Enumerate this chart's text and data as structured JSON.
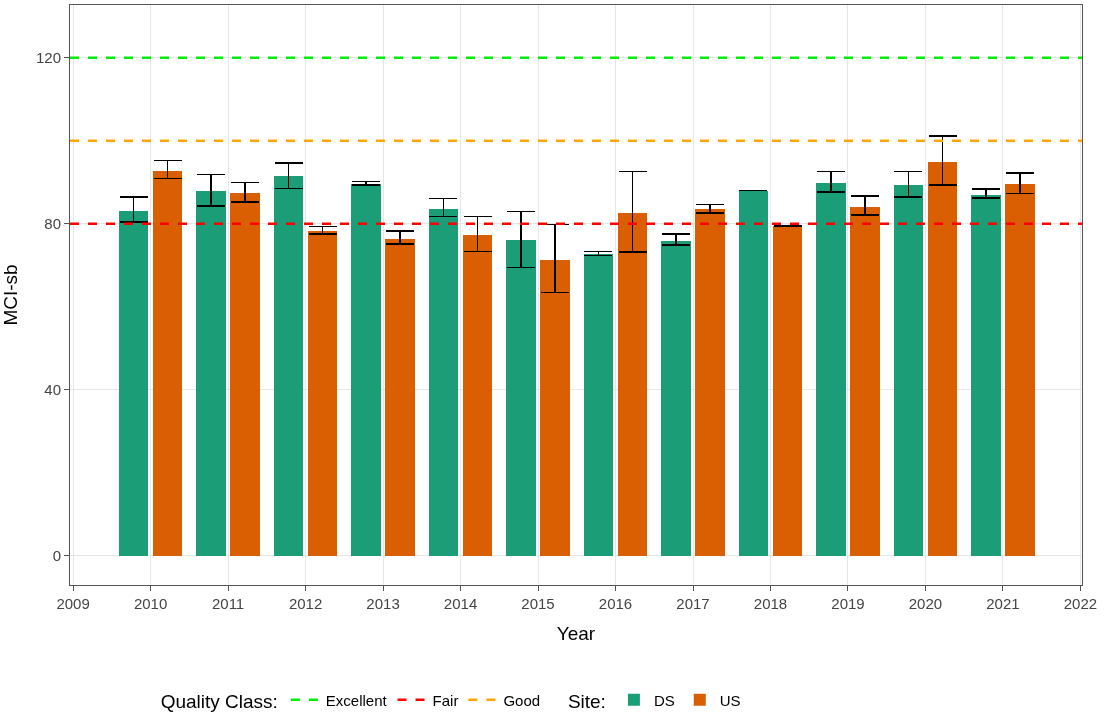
{
  "chart_data": {
    "type": "bar",
    "xlabel": "Year",
    "ylabel": "MCI-sb",
    "legend_title": [
      "Quality Class:",
      "Site:"
    ],
    "series": [
      {
        "name": "DS",
        "color": "#1b9e77",
        "x": [
          2009.78,
          2010.78,
          2011.78,
          2012.78,
          2013.78,
          2014.78,
          2015.78,
          2016.78,
          2017.78,
          2018.78,
          2019.78,
          2020.78
        ],
        "values": [
          83.2,
          87.8,
          91.5,
          89.5,
          83.6,
          76.1,
          72.7,
          75.9,
          88.0,
          89.8,
          89.3,
          86.9
        ],
        "errors": [
          [
            80.4,
            86.4
          ],
          [
            84.3,
            91.9
          ],
          [
            88.5,
            94.7
          ],
          [
            89.3,
            90.2
          ],
          [
            81.8,
            86.1
          ],
          [
            69.5,
            83.0
          ],
          [
            72.4,
            73.3
          ],
          [
            74.9,
            77.5
          ],
          null,
          [
            87.6,
            92.6
          ],
          [
            86.4,
            92.6
          ],
          [
            86.2,
            88.4
          ]
        ]
      },
      {
        "name": "US",
        "color": "#d95f02",
        "x": [
          2010.22,
          2011.22,
          2012.22,
          2013.22,
          2014.22,
          2015.22,
          2016.22,
          2017.22,
          2018.22,
          2019.22,
          2020.22,
          2021.22
        ],
        "values": [
          92.8,
          87.4,
          78.2,
          76.4,
          77.2,
          71.3,
          82.6,
          83.5,
          79.5,
          84.1,
          94.9,
          89.6
        ],
        "errors": [
          [
            90.9,
            95.2
          ],
          [
            85.2,
            89.9
          ],
          [
            77.6,
            79.3
          ],
          [
            75.1,
            78.3
          ],
          [
            73.3,
            81.8
          ],
          [
            63.5,
            79.8
          ],
          [
            73.2,
            92.6
          ],
          [
            82.6,
            84.7
          ],
          null,
          [
            82.1,
            86.7
          ],
          [
            89.3,
            101.2
          ],
          [
            87.3,
            92.2
          ]
        ]
      }
    ],
    "ref_lines": [
      {
        "axis": "y",
        "value": 120,
        "label": "Excellent",
        "color": "#00ee00",
        "line_style": "dashed"
      },
      {
        "axis": "y",
        "value": 80,
        "label": "Fair",
        "color": "#ff0000",
        "line_style": "dashed"
      },
      {
        "axis": "y",
        "value": 100,
        "label": "Good",
        "color": "#ffa500",
        "line_style": "dashed"
      }
    ],
    "xlim": [
      2008.96,
      2022.02
    ],
    "xticks": [
      2009,
      2010,
      2011,
      2012,
      2013,
      2014,
      2015,
      2016,
      2017,
      2018,
      2019,
      2020,
      2021,
      2022
    ],
    "ylim": [
      -7,
      132.7
    ],
    "yticks": [
      0,
      40,
      80,
      120
    ],
    "grid": true,
    "legend": "bottom"
  }
}
